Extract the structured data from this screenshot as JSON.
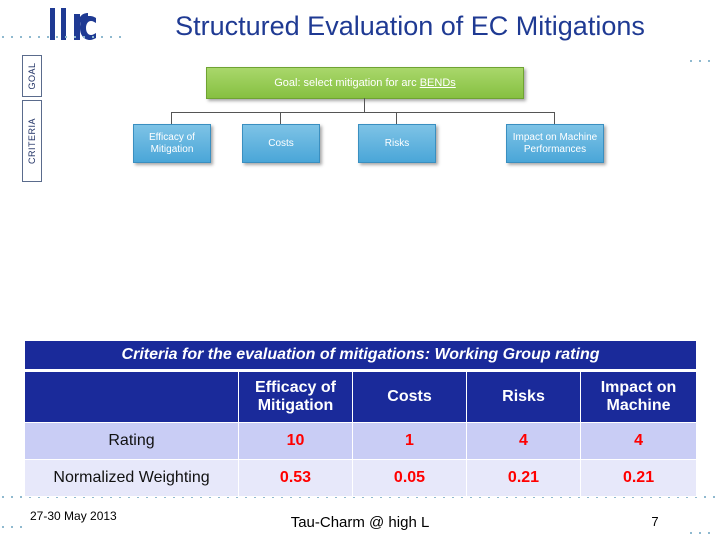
{
  "title": "Structured Evaluation of EC Mitigations",
  "side_labels": {
    "goal": "GOAL",
    "criteria": "CRITERIA"
  },
  "diagram": {
    "goal_prefix": "Goal: select mitigation for arc ",
    "goal_underlined": "BENDs",
    "criteria": [
      {
        "line1": "Efficacy of",
        "line2": "Mitigation"
      },
      {
        "line1": "Costs",
        "line2": ""
      },
      {
        "line1": "Risks",
        "line2": ""
      },
      {
        "line1": "Impact on Machine",
        "line2": "Performances"
      }
    ]
  },
  "table": {
    "caption": "Criteria for the evaluation of mitigations: Working Group rating",
    "headers": [
      {
        "line1": "Efficacy of",
        "line2": "Mitigation"
      },
      {
        "line1": "Costs",
        "line2": ""
      },
      {
        "line1": "Risks",
        "line2": ""
      },
      {
        "line1": "Impact on",
        "line2": "Machine"
      }
    ],
    "rows": [
      {
        "label": "Rating",
        "values": [
          "10",
          "1",
          "4",
          "4"
        ]
      },
      {
        "label": "Normalized Weighting",
        "values": [
          "0.53",
          "0.05",
          "0.21",
          "0.21"
        ]
      }
    ]
  },
  "footer": {
    "date": "27-30 May 2013",
    "event": "Tau-Charm @ high L",
    "page": "7"
  },
  "colors": {
    "title": "#1f3a93",
    "goal_box": "#86c041",
    "criteria_box": "#4aa6d8",
    "table_header": "#1a2a9a",
    "table_value": "#ff0000"
  }
}
